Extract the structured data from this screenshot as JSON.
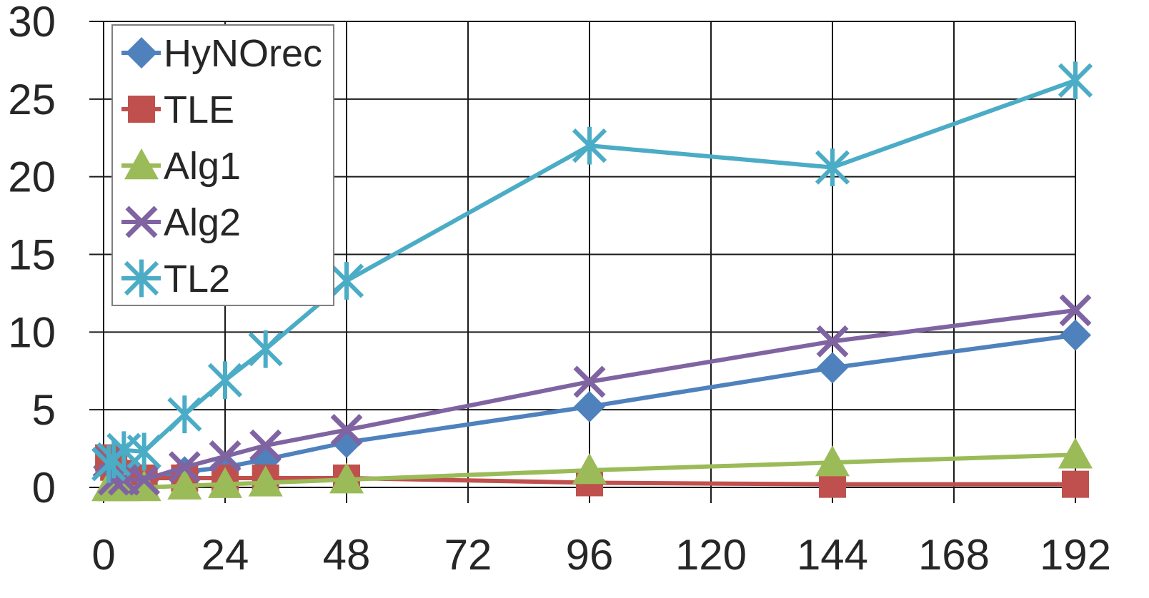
{
  "chart_data": {
    "type": "line",
    "title": "",
    "xlabel": "",
    "ylabel": "",
    "x_ticks": [
      0,
      24,
      48,
      72,
      96,
      120,
      144,
      168,
      192
    ],
    "y_ticks": [
      0,
      5,
      10,
      15,
      20,
      25,
      30
    ],
    "xlim": [
      0,
      192
    ],
    "ylim": [
      0,
      30
    ],
    "grid": true,
    "legend_position": "top-left",
    "x": [
      1,
      2,
      4,
      8,
      16,
      24,
      32,
      48,
      96,
      144,
      192
    ],
    "series": [
      {
        "name": "HyNOrec",
        "color": "#4F81BD",
        "marker": "diamond",
        "values": [
          1.3,
          1.0,
          0.7,
          0.5,
          1.0,
          1.3,
          1.8,
          2.9,
          5.2,
          7.7,
          9.8
        ]
      },
      {
        "name": "TLE",
        "color": "#C0504D",
        "marker": "square",
        "values": [
          1.9,
          1.3,
          0.9,
          0.6,
          0.6,
          0.6,
          0.6,
          0.6,
          0.3,
          0.2,
          0.2
        ]
      },
      {
        "name": "Alg1",
        "color": "#9BBB59",
        "marker": "triangle",
        "values": [
          0.0,
          0.0,
          0.0,
          0.0,
          0.1,
          0.2,
          0.3,
          0.5,
          1.1,
          1.6,
          2.1
        ]
      },
      {
        "name": "Alg2",
        "color": "#8064A2",
        "marker": "x",
        "values": [
          1.6,
          0.5,
          0.5,
          0.5,
          1.3,
          2.0,
          2.7,
          3.7,
          6.8,
          9.4,
          11.4
        ]
      },
      {
        "name": "TL2",
        "color": "#4BACC6",
        "marker": "star",
        "values": [
          1.5,
          1.8,
          2.4,
          2.3,
          4.7,
          6.9,
          8.9,
          13.3,
          22.0,
          20.6,
          26.2
        ]
      }
    ]
  }
}
